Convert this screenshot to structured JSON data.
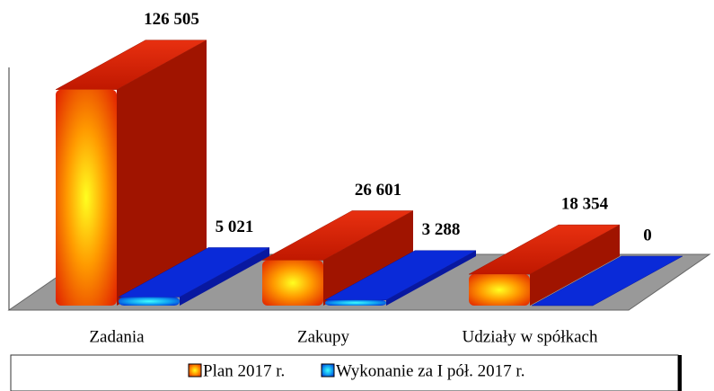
{
  "chart_data": {
    "type": "bar3d",
    "categories": [
      "Zadania",
      "Zakupy",
      "Udziały w spółkach"
    ],
    "series": [
      {
        "name": "Plan 2017 r.",
        "color": "#d01a00",
        "values": [
          126505,
          26601,
          18354
        ],
        "value_labels": [
          "126 505",
          "26 601",
          "18 354"
        ]
      },
      {
        "name": "Wykonanie za I pół. 2017 r.",
        "color": "#0a2ad8",
        "values": [
          5021,
          3288,
          0
        ],
        "value_labels": [
          "5 021",
          "3 288",
          "0"
        ]
      }
    ],
    "ylim": [
      0,
      140000
    ]
  }
}
